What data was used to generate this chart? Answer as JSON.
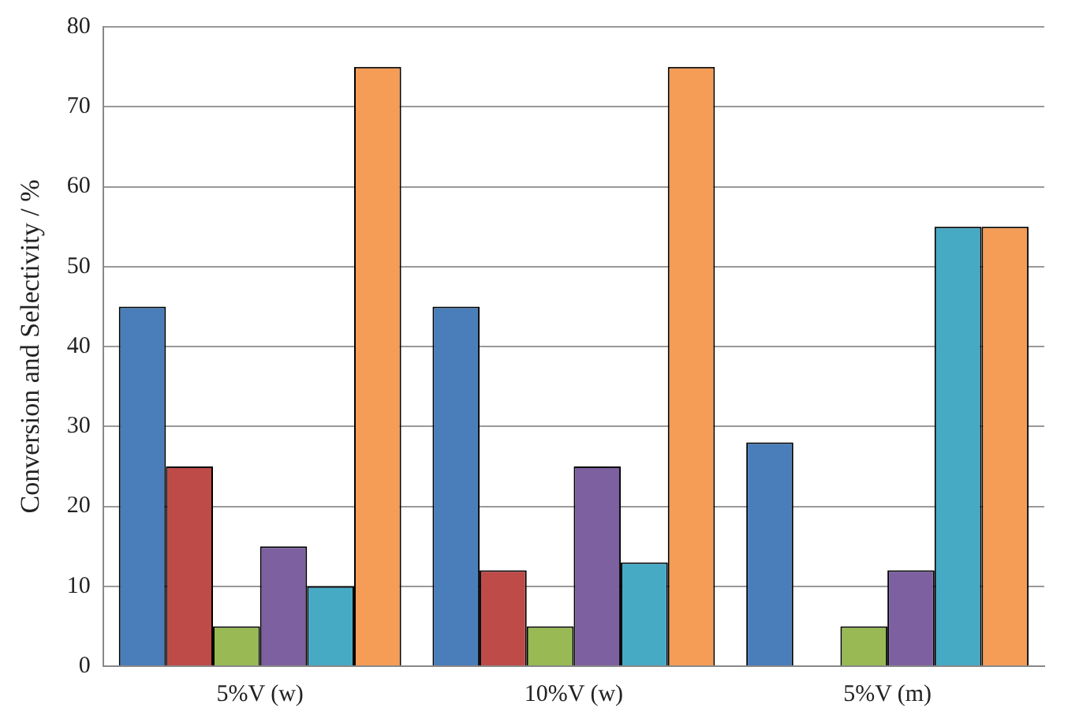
{
  "chart_data": {
    "type": "bar",
    "ylabel": "Conversion and Selectivity / %",
    "categories": [
      "5%V (w)",
      "10%V (w)",
      "5%V (m)"
    ],
    "series": [
      {
        "color": "#4a7ebb",
        "values": [
          45,
          45,
          28
        ]
      },
      {
        "color": "#be4b48",
        "values": [
          25,
          12,
          null
        ]
      },
      {
        "color": "#98b954",
        "values": [
          5,
          5,
          5
        ]
      },
      {
        "color": "#7d60a0",
        "values": [
          15,
          25,
          12
        ]
      },
      {
        "color": "#46aac5",
        "values": [
          10,
          13,
          55
        ]
      },
      {
        "color": "#f59d56",
        "values": [
          75,
          75,
          55
        ]
      }
    ],
    "ylim": [
      0,
      80
    ],
    "yticks": [
      0,
      10,
      20,
      30,
      40,
      50,
      60,
      70,
      80
    ],
    "grid": "y",
    "legend": false
  }
}
